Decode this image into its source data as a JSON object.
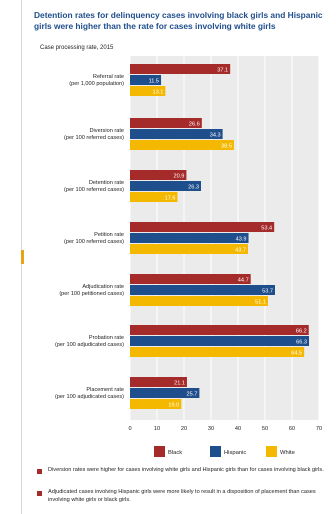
{
  "title": "Detention rates for delinquency cases involving black girls and Hispanic girls were higher than the rate for cases involving white girls",
  "subtitle": "Case processing rate, 2015",
  "chart_data": {
    "type": "bar",
    "orientation": "horizontal",
    "categories": [
      [
        "Referral rate",
        "(per 1,000 population)"
      ],
      [
        "Diversion rate",
        "(per 100 referred cases)"
      ],
      [
        "Detention rate",
        "(per 100 referred cases)"
      ],
      [
        "Petition rate",
        "(per 100 referred cases)"
      ],
      [
        "Adjudication rate",
        "(per 100 petitioned cases)"
      ],
      [
        "Probation rate",
        "(per 100 adjudicated cases)"
      ],
      [
        "Placement rate",
        "(per 100 adjudicated cases)"
      ]
    ],
    "series": [
      {
        "name": "Black",
        "color": "#a52a2a",
        "values": [
          37.1,
          26.6,
          20.9,
          53.4,
          44.7,
          66.2,
          21.1
        ]
      },
      {
        "name": "Hispanic",
        "color": "#1f4e8c",
        "values": [
          11.5,
          34.3,
          26.3,
          43.9,
          53.7,
          66.3,
          25.7
        ]
      },
      {
        "name": "White",
        "color": "#f5b800",
        "values": [
          13.1,
          38.5,
          17.6,
          43.7,
          51.1,
          64.5,
          19.0
        ]
      }
    ],
    "value_labels": [
      [
        "37.1",
        "11.5",
        "13.1"
      ],
      [
        "26.6",
        "34.3",
        "38.5"
      ],
      [
        "20.9",
        "26.3",
        "17.6"
      ],
      [
        "53.4",
        "43.9",
        "43.7"
      ],
      [
        "44.7",
        "53.7",
        "51.1"
      ],
      [
        "66.2",
        "66.3",
        "64.5"
      ],
      [
        "21.1",
        "25.7",
        "19.0"
      ]
    ],
    "xlim": [
      0,
      70
    ],
    "xticks": [
      "0",
      "10",
      "20",
      "30",
      "40",
      "50",
      "60",
      "70"
    ],
    "grid": true,
    "legend_position": "bottom"
  },
  "notes": [
    "Diversion rates were higher for cases involving white girls and Hispanic girls than for cases involving black girls.",
    "Adjudicated cases involving Hispanic girls were more likely to result in a disposition of placement than cases involving white girls or black girls."
  ]
}
